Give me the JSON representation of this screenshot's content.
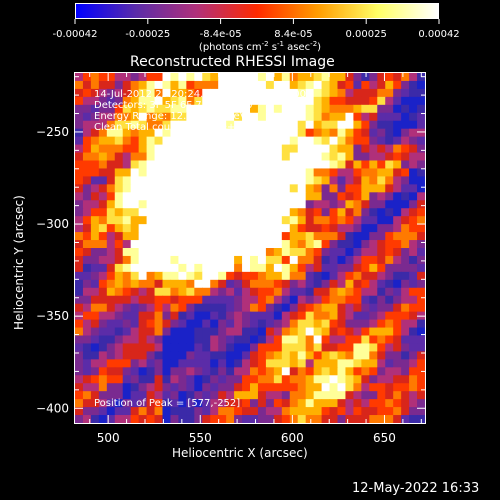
{
  "colors": {
    "background": "#000000",
    "colorbar_stops": [
      "#0000ff",
      "#5b2ca8",
      "#b0307a",
      "#ff2a00",
      "#ff9b00",
      "#ffff66",
      "#ffffff"
    ]
  },
  "colorbar": {
    "ticks": [
      "-0.00042",
      "-0.00025",
      "-8.4e-05",
      "8.4e-05",
      "0.00025",
      "0.00042"
    ],
    "unit_parts": [
      "(photons cm",
      "-2",
      " s",
      "-1",
      " asec",
      "-2",
      ")"
    ]
  },
  "chart_data": {
    "type": "heatmap",
    "title": "Reconstructed RHESSI Image",
    "xlabel": "Heliocentric X (arcsec)",
    "ylabel": "Heliocentric Y (arcsec)",
    "xlim": [
      482,
      672
    ],
    "ylim": [
      -408,
      -218
    ],
    "xticks": [
      500,
      550,
      600,
      650
    ],
    "yticks": [
      -250,
      -300,
      -350,
      -400
    ],
    "xtick_labels": [
      "500",
      "550",
      "600",
      "650"
    ],
    "ytick_labels": [
      "−250",
      "−300",
      "−350",
      "−400"
    ],
    "peak_position": [
      577,
      -252
    ],
    "annotations": {
      "time_range": "14-Jul-2012 23:20:24.000 to 23:26:24.000",
      "detectors": "Detectors: 3F 5F 6F 7F 8F, att 0",
      "energy_range": "Energy Range: 12.0 - 25.0 keV",
      "method_counts": "Clean     Total counts: 6.595e+03",
      "peak": "Position of Peak = [577,-252]"
    }
  },
  "footer": {
    "date_stamp": "12-May-2022 16:33"
  }
}
